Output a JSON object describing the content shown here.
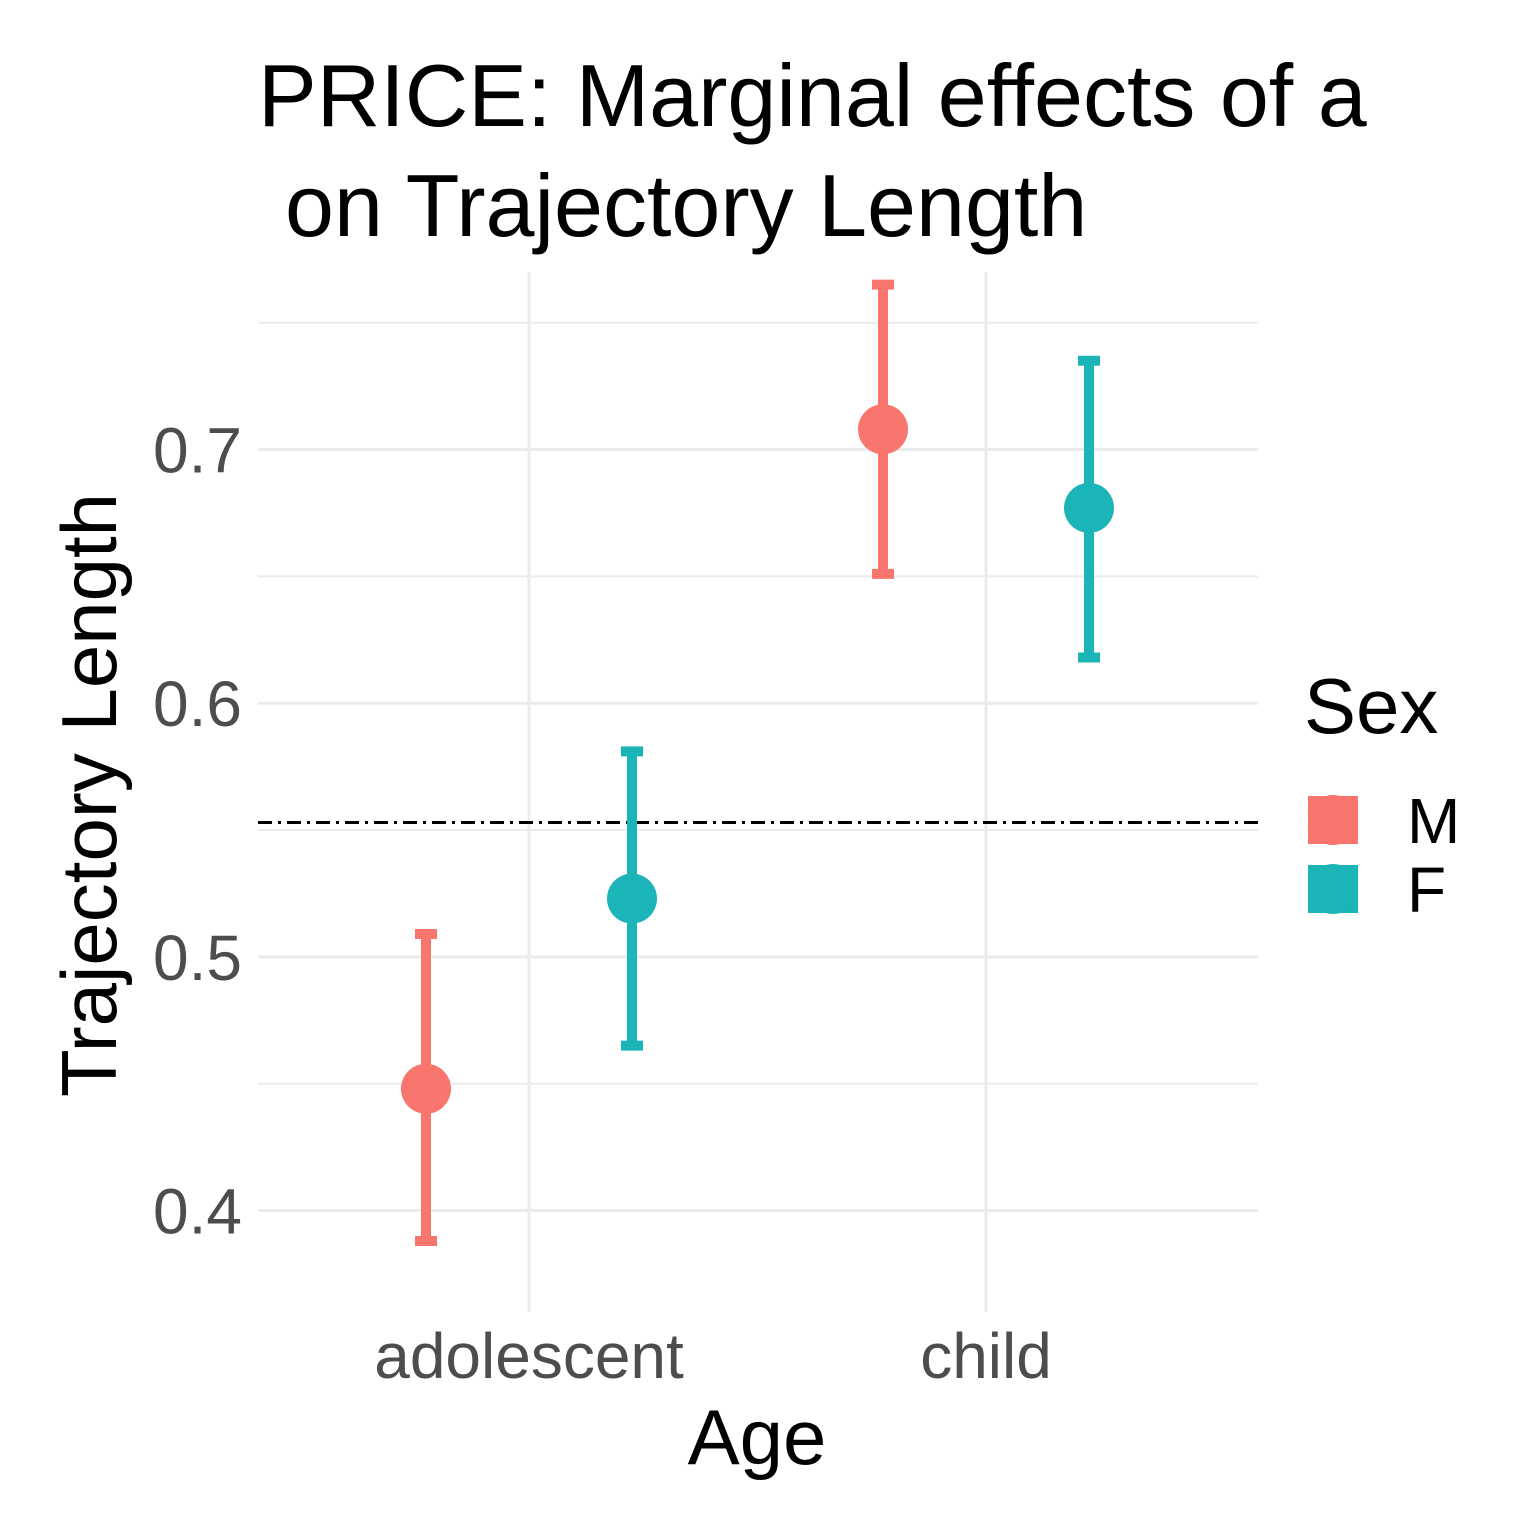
{
  "chart_data": {
    "type": "scatter",
    "title_lines": [
      "PRICE: Marginal effects of a",
      "on Trajectory Length"
    ],
    "xlabel": "Age",
    "ylabel": "Trajectory Length",
    "categories": [
      "adolescent",
      "child"
    ],
    "ylim": [
      0.36,
      0.77
    ],
    "yticks": [
      0.4,
      0.5,
      0.6,
      0.7
    ],
    "ytick_labels": [
      "0.4",
      "0.5",
      "0.6",
      "0.7"
    ],
    "reference_line": 0.553,
    "legend": {
      "title": "Sex",
      "placement": "right",
      "entries": [
        "M",
        "F"
      ]
    },
    "series": [
      {
        "name": "M",
        "color": "#F8766D",
        "points": [
          {
            "category": "adolescent",
            "y": 0.448,
            "lower": 0.388,
            "upper": 0.509
          },
          {
            "category": "child",
            "y": 0.708,
            "lower": 0.651,
            "upper": 0.765
          }
        ]
      },
      {
        "name": "F",
        "color": "#1BB5B8",
        "points": [
          {
            "category": "adolescent",
            "y": 0.523,
            "lower": 0.465,
            "upper": 0.581
          },
          {
            "category": "child",
            "y": 0.677,
            "lower": 0.618,
            "upper": 0.735
          }
        ]
      }
    ]
  }
}
